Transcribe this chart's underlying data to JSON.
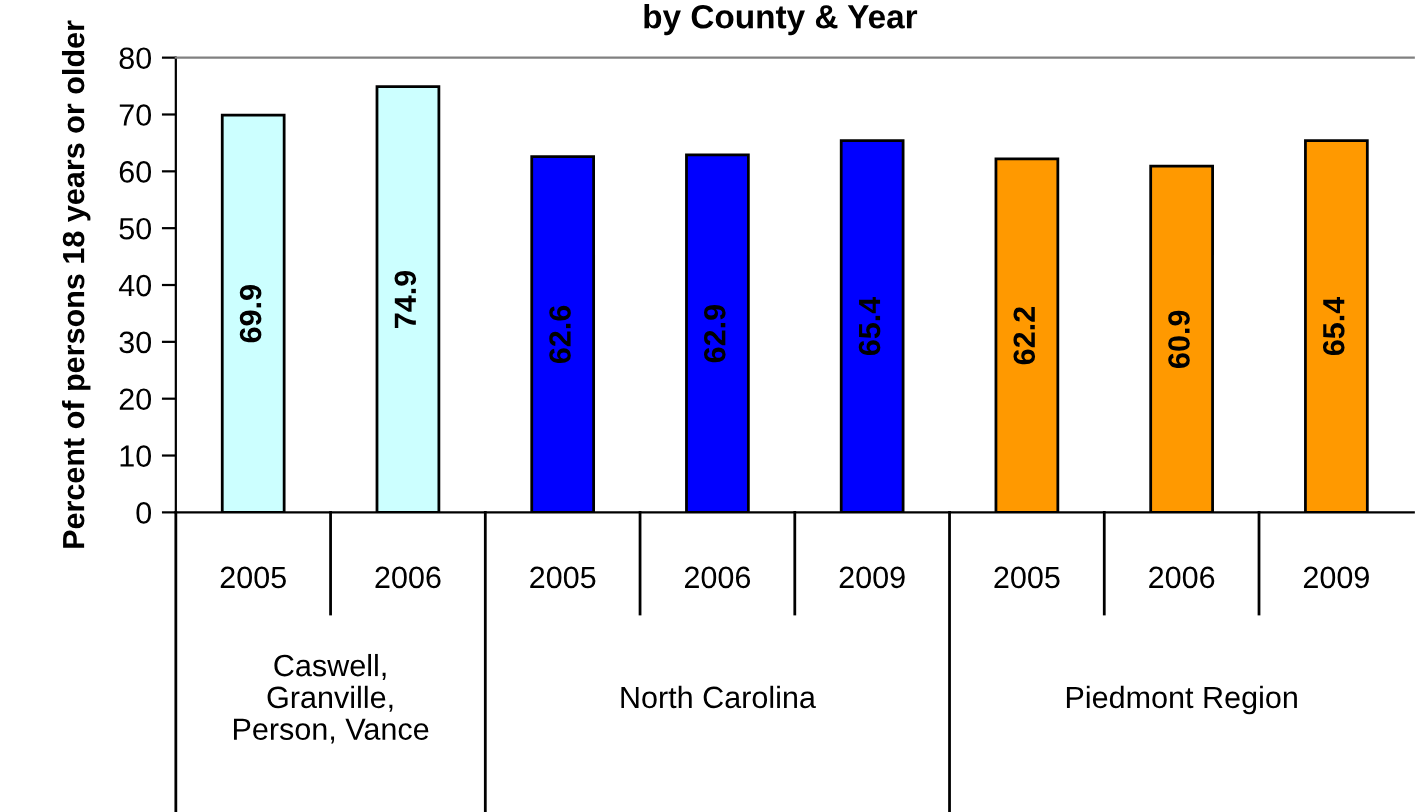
{
  "chart_data": {
    "type": "bar",
    "title": "by County & Year",
    "ylabel": "Percent of persons 18 years or older",
    "categories": [
      "2005",
      "2006",
      "2005",
      "2006",
      "2009",
      "2005",
      "2006",
      "2009"
    ],
    "values": [
      69.9,
      74.9,
      62.6,
      62.9,
      65.4,
      62.2,
      60.9,
      65.4
    ],
    "colors": [
      "#ccffff",
      "#ccffff",
      "#0000ff",
      "#0000ff",
      "#0000ff",
      "#ff9900",
      "#ff9900",
      "#ff9900"
    ],
    "annotations": [
      "Caswell,\nGranville,\nPerson, Vance",
      "North Carolina",
      "Piedmont Region"
    ],
    "ylim": [
      0,
      80
    ],
    "yticks": [
      0,
      10,
      20,
      30,
      40,
      50,
      60,
      70,
      80
    ],
    "data_labels": true,
    "grid": false,
    "legend": false
  }
}
